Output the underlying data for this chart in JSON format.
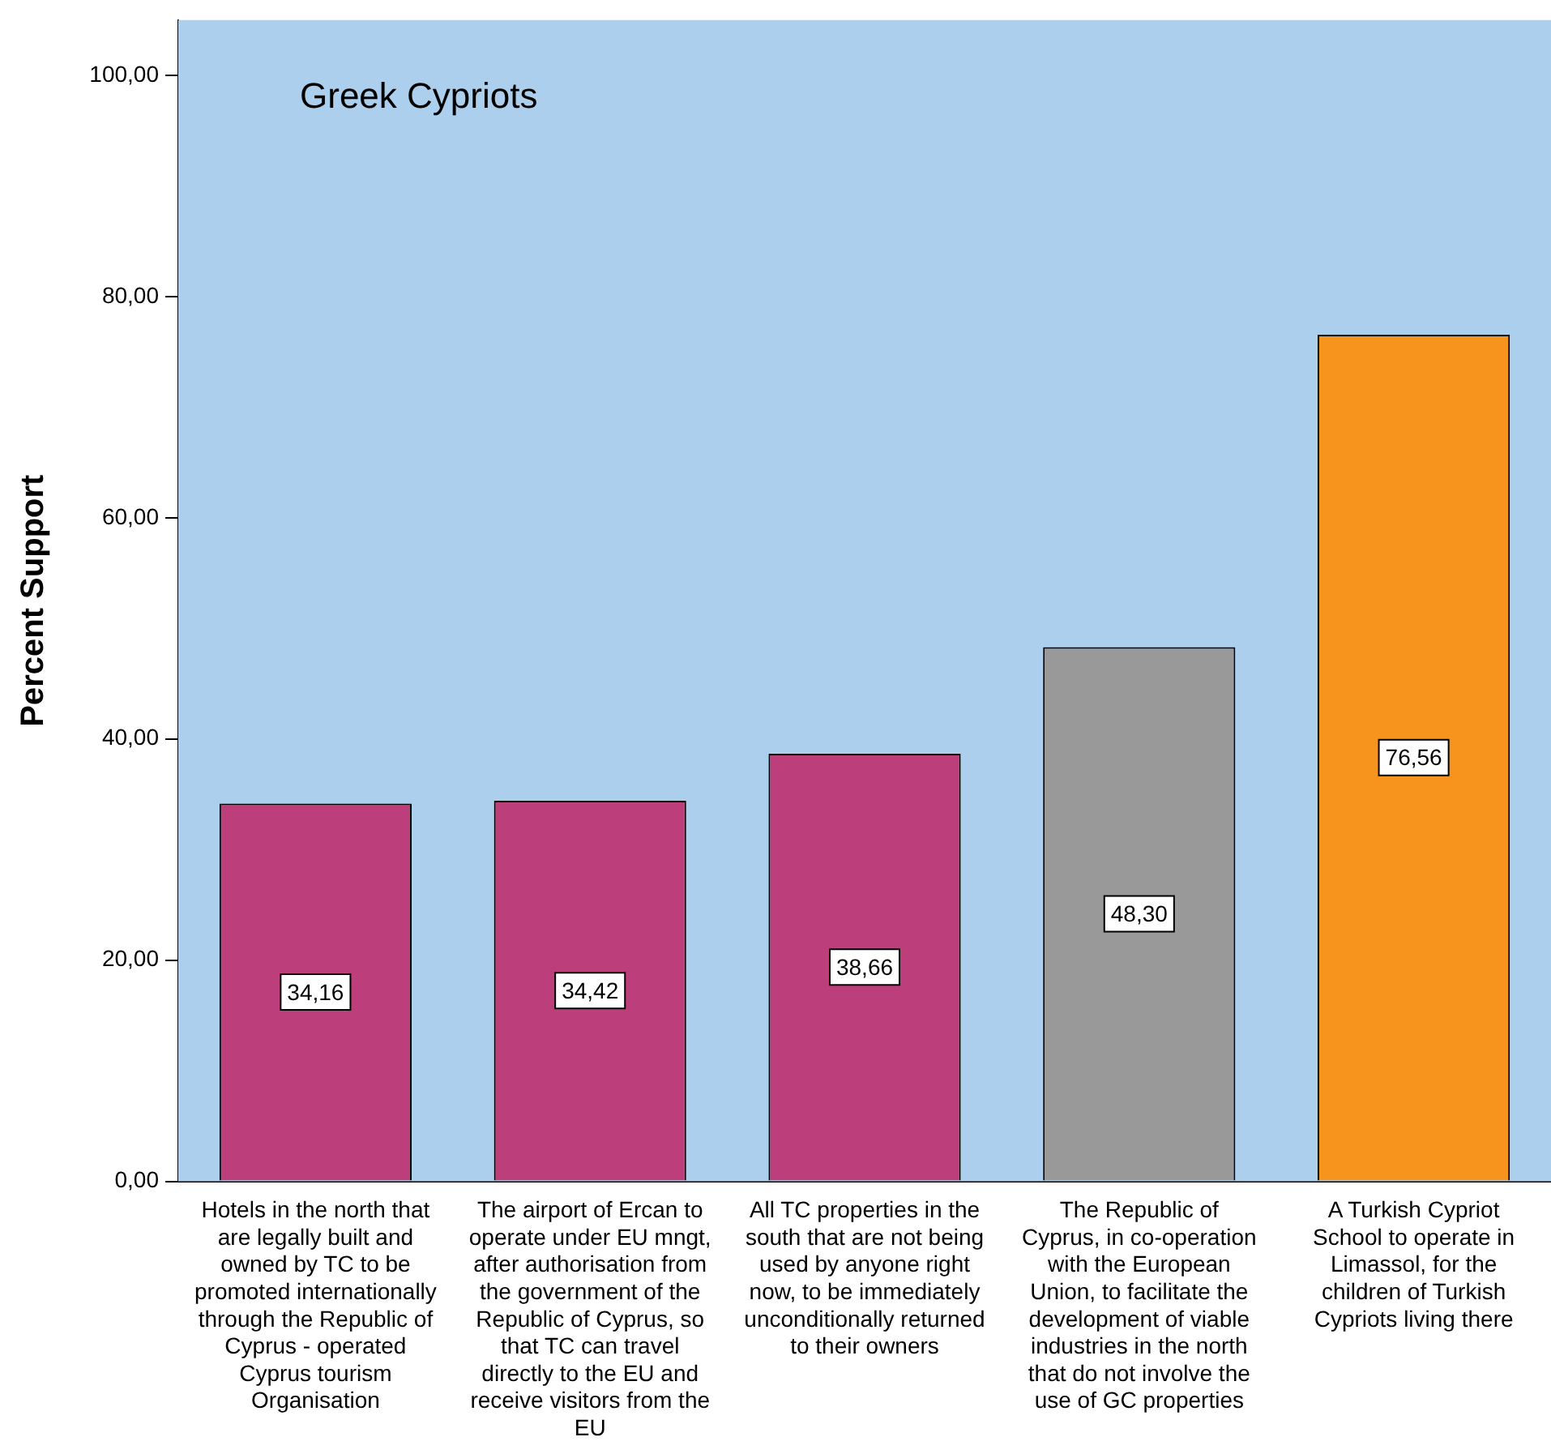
{
  "chart_data": {
    "type": "bar",
    "title": "Greek Cypriots",
    "ylabel": "Percent Support",
    "categories": [
      "Hotels in the north that are legally built and owned by TC to be promoted internationally through the Republic of Cyprus - operated Cyprus tourism Organisation",
      "The airport of Ercan to operate under EU mngt, after authorisation from the government of the Republic of Cyprus, so that TC can travel directly to the EU and receive visitors from the EU",
      "All TC properties in the south that are not being used by anyone right now, to be immediately unconditionally returned to their owners",
      "The Republic of Cyprus, in co-operation with the European Union, to facilitate the development of viable industries in the north that do not involve the use of GC properties",
      "A Turkish Cypriot School to operate in Limassol, for the children of Turkish Cypriots living there"
    ],
    "values": [
      34.16,
      34.42,
      38.66,
      48.3,
      76.56
    ],
    "colors": [
      "#bc3e7a",
      "#bc3e7a",
      "#bc3e7a",
      "#999999",
      "#f7941d"
    ],
    "value_labels": [
      "34,16",
      "34,42",
      "38,66",
      "48,30",
      "76,56"
    ],
    "ylim": [
      0,
      105
    ],
    "yticks": [
      {
        "value": 0,
        "label": "0,00"
      },
      {
        "value": 20,
        "label": "20,00"
      },
      {
        "value": 40,
        "label": "40,00"
      },
      {
        "value": 60,
        "label": "60,00"
      },
      {
        "value": 80,
        "label": "80,00"
      },
      {
        "value": 100,
        "label": "100,00"
      }
    ],
    "grid": false,
    "legend": false
  }
}
